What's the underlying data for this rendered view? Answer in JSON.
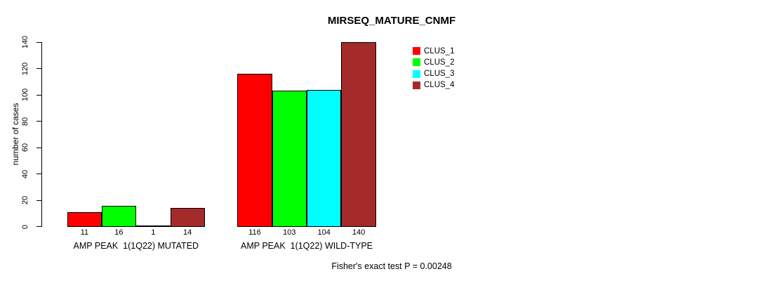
{
  "title": "MIRSEQ_MATURE_CNMF",
  "chart_data": {
    "type": "bar",
    "title": "MIRSEQ_MATURE_CNMF",
    "xlabel": "",
    "ylabel": "number of cases",
    "ylim": [
      0,
      140
    ],
    "yticks": [
      0,
      20,
      40,
      60,
      80,
      100,
      120,
      140
    ],
    "grid": false,
    "bar_borders": "black",
    "legend_position": "top-right",
    "categories": [
      "AMP PEAK  1(1Q22) MUTATED",
      "AMP PEAK  1(1Q22) WILD-TYPE"
    ],
    "series": [
      {
        "name": "CLUS_1",
        "color": "#FF0000",
        "values": [
          11,
          116
        ]
      },
      {
        "name": "CLUS_2",
        "color": "#00FF00",
        "values": [
          16,
          103
        ]
      },
      {
        "name": "CLUS_3",
        "color": "#00FFFF",
        "values": [
          1,
          104
        ]
      },
      {
        "name": "CLUS_4",
        "color": "#A52A2A",
        "values": [
          14,
          140
        ]
      }
    ],
    "bar_value_labels": [
      [
        "11",
        "16",
        "1",
        "14"
      ],
      [
        "116",
        "103",
        "104",
        "140"
      ]
    ],
    "annotation": "Fisher's exact test P = 0.00248"
  }
}
